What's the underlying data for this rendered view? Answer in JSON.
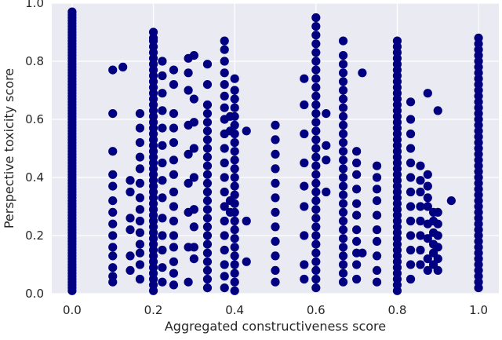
{
  "chart_data": {
    "type": "scatter",
    "title": "",
    "xlabel": "Aggregated constructiveness score",
    "ylabel": "Perspective toxicity score",
    "xlim": [
      -0.05,
      1.05
    ],
    "ylim": [
      0.0,
      1.0
    ],
    "xticks": [
      "0.0",
      "0.2",
      "0.4",
      "0.6",
      "0.8",
      "1.0"
    ],
    "yticks": [
      "0.0",
      "0.2",
      "0.4",
      "0.6",
      "0.8",
      "1.0"
    ],
    "grid": true,
    "legend": "none",
    "background_color": "#eaeaf2",
    "marker_color": "#000080",
    "columns": [
      {
        "x": 0.0,
        "y": [
          0.01,
          0.02,
          0.03,
          0.04,
          0.05,
          0.06,
          0.07,
          0.08,
          0.09,
          0.1,
          0.11,
          0.12,
          0.13,
          0.14,
          0.15,
          0.16,
          0.17,
          0.18,
          0.19,
          0.2,
          0.21,
          0.22,
          0.23,
          0.24,
          0.25,
          0.26,
          0.27,
          0.28,
          0.29,
          0.3,
          0.31,
          0.32,
          0.33,
          0.34,
          0.35,
          0.36,
          0.37,
          0.38,
          0.39,
          0.4,
          0.41,
          0.42,
          0.43,
          0.44,
          0.45,
          0.46,
          0.47,
          0.48,
          0.49,
          0.5,
          0.51,
          0.52,
          0.53,
          0.54,
          0.55,
          0.56,
          0.57,
          0.58,
          0.59,
          0.6,
          0.61,
          0.62,
          0.63,
          0.64,
          0.65,
          0.66,
          0.67,
          0.68,
          0.69,
          0.7,
          0.71,
          0.72,
          0.73,
          0.74,
          0.75,
          0.76,
          0.77,
          0.78,
          0.79,
          0.8,
          0.81,
          0.82,
          0.83,
          0.84,
          0.85,
          0.86,
          0.87,
          0.88,
          0.89,
          0.9,
          0.91,
          0.92,
          0.93,
          0.94,
          0.95,
          0.96,
          0.97
        ]
      },
      {
        "x": 0.1,
        "y": [
          0.04,
          0.06,
          0.09,
          0.13,
          0.16,
          0.2,
          0.24,
          0.28,
          0.32,
          0.37,
          0.41,
          0.49,
          0.62,
          0.77
        ]
      },
      {
        "x": 0.125,
        "y": [
          0.78
        ]
      },
      {
        "x": 0.143,
        "y": [
          0.08,
          0.13,
          0.22,
          0.26,
          0.35,
          0.39
        ]
      },
      {
        "x": 0.167,
        "y": [
          0.05,
          0.1,
          0.14,
          0.17,
          0.21,
          0.25,
          0.29,
          0.33,
          0.38,
          0.43,
          0.47,
          0.52,
          0.57,
          0.62
        ]
      },
      {
        "x": 0.2,
        "y": [
          0.01,
          0.03,
          0.05,
          0.07,
          0.09,
          0.11,
          0.13,
          0.15,
          0.17,
          0.19,
          0.21,
          0.23,
          0.25,
          0.27,
          0.29,
          0.31,
          0.33,
          0.35,
          0.37,
          0.39,
          0.41,
          0.43,
          0.45,
          0.47,
          0.49,
          0.51,
          0.53,
          0.55,
          0.57,
          0.59,
          0.61,
          0.63,
          0.65,
          0.67,
          0.69,
          0.71,
          0.73,
          0.75,
          0.77,
          0.79,
          0.81,
          0.83,
          0.85,
          0.87,
          0.88,
          0.9
        ]
      },
      {
        "x": 0.222,
        "y": [
          0.04,
          0.09,
          0.15,
          0.2,
          0.26,
          0.33,
          0.39,
          0.45,
          0.51,
          0.57,
          0.63,
          0.69,
          0.75,
          0.8
        ]
      },
      {
        "x": 0.25,
        "y": [
          0.03,
          0.07,
          0.11,
          0.16,
          0.2,
          0.25,
          0.3,
          0.35,
          0.41,
          0.46,
          0.52,
          0.57,
          0.62,
          0.72,
          0.77
        ]
      },
      {
        "x": 0.286,
        "y": [
          0.04,
          0.16,
          0.28,
          0.38,
          0.48,
          0.58,
          0.7,
          0.76,
          0.81
        ]
      },
      {
        "x": 0.3,
        "y": [
          0.12,
          0.16,
          0.23,
          0.29,
          0.4,
          0.5,
          0.59,
          0.67,
          0.82
        ]
      },
      {
        "x": 0.333,
        "y": [
          0.02,
          0.05,
          0.08,
          0.11,
          0.14,
          0.17,
          0.2,
          0.23,
          0.26,
          0.29,
          0.32,
          0.35,
          0.38,
          0.41,
          0.44,
          0.47,
          0.5,
          0.53,
          0.56,
          0.59,
          0.62,
          0.65,
          0.72,
          0.79
        ]
      },
      {
        "x": 0.375,
        "y": [
          0.02,
          0.06,
          0.1,
          0.15,
          0.2,
          0.25,
          0.3,
          0.35,
          0.4,
          0.45,
          0.5,
          0.55,
          0.6,
          0.64,
          0.68,
          0.72,
          0.76,
          0.8,
          0.84,
          0.87
        ]
      },
      {
        "x": 0.4,
        "y": [
          0.01,
          0.04,
          0.07,
          0.1,
          0.13,
          0.16,
          0.19,
          0.22,
          0.25,
          0.28,
          0.31,
          0.34,
          0.37,
          0.4,
          0.43,
          0.46,
          0.49,
          0.52,
          0.55,
          0.58,
          0.61,
          0.64,
          0.67,
          0.7,
          0.74
        ]
      },
      {
        "x": 0.389,
        "y": [
          0.28,
          0.32,
          0.56,
          0.61
        ]
      },
      {
        "x": 0.429,
        "y": [
          0.11,
          0.25,
          0.56
        ]
      },
      {
        "x": 0.5,
        "y": [
          0.04,
          0.08,
          0.13,
          0.18,
          0.23,
          0.28,
          0.33,
          0.38,
          0.43,
          0.48,
          0.53,
          0.58
        ]
      },
      {
        "x": 0.571,
        "y": [
          0.05,
          0.1,
          0.2,
          0.3,
          0.37,
          0.45,
          0.55,
          0.65,
          0.74
        ]
      },
      {
        "x": 0.6,
        "y": [
          0.02,
          0.05,
          0.08,
          0.11,
          0.14,
          0.17,
          0.2,
          0.23,
          0.26,
          0.29,
          0.32,
          0.35,
          0.38,
          0.41,
          0.44,
          0.47,
          0.5,
          0.53,
          0.56,
          0.59,
          0.62,
          0.65,
          0.68,
          0.71,
          0.74,
          0.77,
          0.8,
          0.83,
          0.86,
          0.89,
          0.92,
          0.95
        ]
      },
      {
        "x": 0.625,
        "y": [
          0.35,
          0.46,
          0.51,
          0.62
        ]
      },
      {
        "x": 0.667,
        "y": [
          0.04,
          0.07,
          0.1,
          0.13,
          0.16,
          0.19,
          0.22,
          0.25,
          0.28,
          0.31,
          0.34,
          0.37,
          0.4,
          0.43,
          0.46,
          0.49,
          0.52,
          0.55,
          0.58,
          0.61,
          0.64,
          0.67,
          0.7,
          0.73,
          0.76,
          0.79,
          0.82,
          0.87
        ]
      },
      {
        "x": 0.7,
        "y": [
          0.05,
          0.1,
          0.14,
          0.18,
          0.22,
          0.27,
          0.31,
          0.36,
          0.41,
          0.45,
          0.49
        ]
      },
      {
        "x": 0.714,
        "y": [
          0.14,
          0.76
        ]
      },
      {
        "x": 0.75,
        "y": [
          0.04,
          0.08,
          0.13,
          0.18,
          0.22,
          0.27,
          0.32,
          0.36,
          0.4,
          0.44
        ]
      },
      {
        "x": 0.8,
        "y": [
          0.01,
          0.03,
          0.05,
          0.07,
          0.09,
          0.11,
          0.13,
          0.15,
          0.17,
          0.19,
          0.21,
          0.23,
          0.25,
          0.27,
          0.29,
          0.31,
          0.33,
          0.35,
          0.37,
          0.39,
          0.41,
          0.43,
          0.45,
          0.47,
          0.49,
          0.51,
          0.53,
          0.55,
          0.57,
          0.59,
          0.61,
          0.63,
          0.65,
          0.67,
          0.69,
          0.71,
          0.73,
          0.75,
          0.77,
          0.79,
          0.81,
          0.83,
          0.85,
          0.87
        ]
      },
      {
        "x": 0.833,
        "y": [
          0.05,
          0.1,
          0.15,
          0.2,
          0.25,
          0.3,
          0.35,
          0.4,
          0.45,
          0.5,
          0.55,
          0.6,
          0.66
        ]
      },
      {
        "x": 0.857,
        "y": [
          0.1,
          0.15,
          0.2,
          0.25,
          0.3,
          0.35,
          0.39,
          0.44
        ]
      },
      {
        "x": 0.875,
        "y": [
          0.08,
          0.12,
          0.19,
          0.24,
          0.3,
          0.33,
          0.37,
          0.41,
          0.69
        ]
      },
      {
        "x": 0.889,
        "y": [
          0.1,
          0.14,
          0.17,
          0.21,
          0.25,
          0.28
        ]
      },
      {
        "x": 0.9,
        "y": [
          0.08,
          0.12,
          0.16,
          0.2,
          0.24,
          0.28,
          0.63
        ]
      },
      {
        "x": 0.933,
        "y": [
          0.32
        ]
      },
      {
        "x": 1.0,
        "y": [
          0.02,
          0.04,
          0.06,
          0.08,
          0.1,
          0.12,
          0.14,
          0.16,
          0.18,
          0.2,
          0.22,
          0.24,
          0.26,
          0.28,
          0.3,
          0.32,
          0.34,
          0.36,
          0.38,
          0.4,
          0.42,
          0.44,
          0.46,
          0.48,
          0.5,
          0.52,
          0.54,
          0.56,
          0.58,
          0.6,
          0.62,
          0.64,
          0.66,
          0.68,
          0.7,
          0.72,
          0.74,
          0.76,
          0.78,
          0.8,
          0.82,
          0.84,
          0.86,
          0.88
        ]
      }
    ]
  }
}
